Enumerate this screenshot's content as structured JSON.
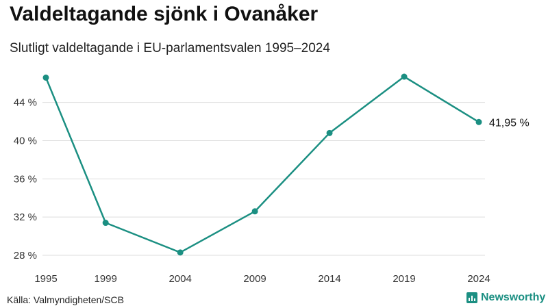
{
  "title": "Valdeltagande sjönk i Ovanåker",
  "subtitle": "Slutligt valdeltagande i EU-parlamentsvalen 1995–2024",
  "source": "Källa: Valmyndigheten/SCB",
  "brand": {
    "name": "Newsworthy",
    "icon": "bar-chart-icon"
  },
  "colors": {
    "line": "#1b8f82",
    "grid": "#dddddd",
    "brand": "#1b8f82"
  },
  "chart_data": {
    "type": "line",
    "x": [
      1995,
      1999,
      2004,
      2009,
      2014,
      2019,
      2024
    ],
    "series": [
      {
        "values": [
          46.6,
          31.4,
          28.3,
          32.6,
          40.8,
          46.7,
          41.95
        ]
      }
    ],
    "yticks": [
      28,
      32,
      36,
      40,
      44
    ],
    "ytick_labels": [
      "28 %",
      "32 %",
      "36 %",
      "40 %",
      "44 %"
    ],
    "xtick_labels": [
      "1995",
      "1999",
      "2004",
      "2009",
      "2014",
      "2019",
      "2024"
    ],
    "ylim": [
      28,
      46.7
    ],
    "end_label": "41,95 %",
    "grid": true,
    "legend": "none"
  }
}
